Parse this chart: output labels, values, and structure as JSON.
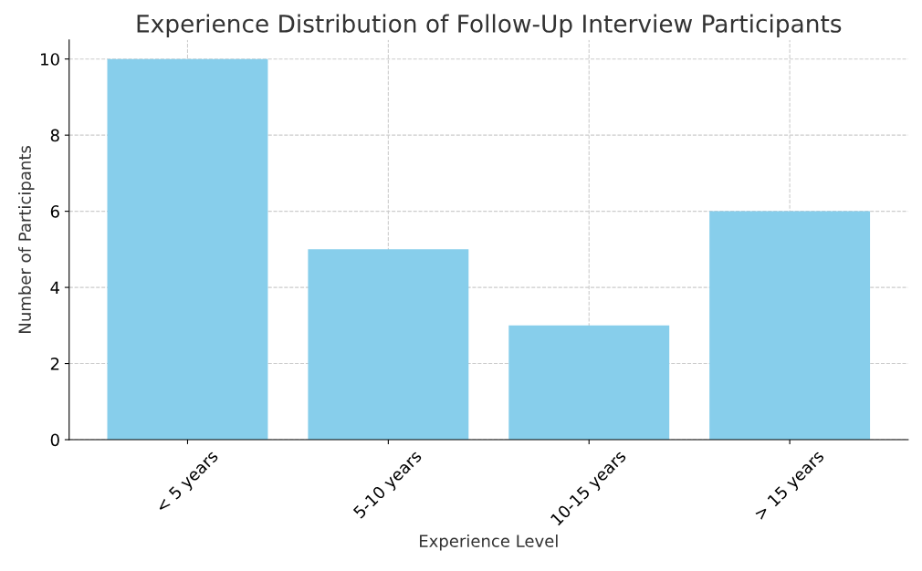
{
  "chart_data": {
    "type": "bar",
    "title": "Experience Distribution of Follow-Up Interview Participants",
    "xlabel": "Experience Level",
    "ylabel": "Number of Participants",
    "categories": [
      "< 5 years",
      "5-10 years",
      "10-15 years",
      "> 15 years"
    ],
    "values": [
      10,
      5,
      3,
      6
    ],
    "color": "#87ceeb",
    "ylim": [
      0,
      10.5
    ],
    "yticks": [
      0,
      2,
      4,
      6,
      8,
      10
    ],
    "grid": true
  }
}
